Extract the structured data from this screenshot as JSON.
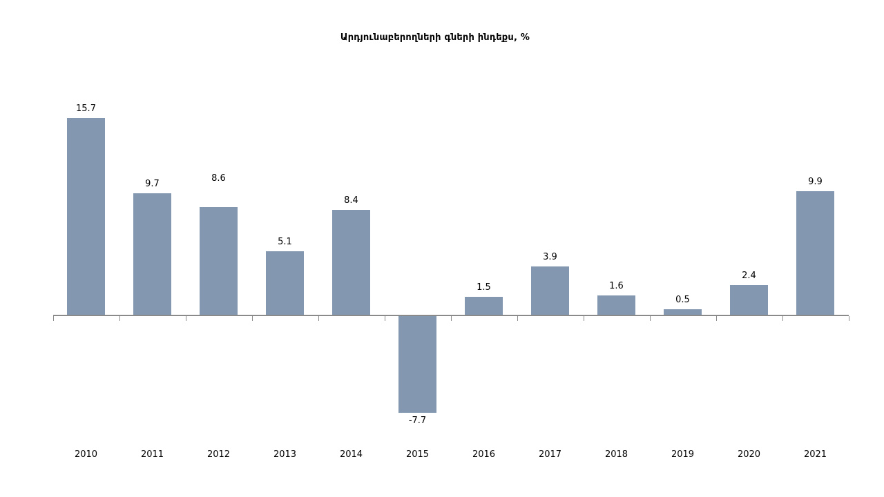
{
  "page": {
    "background": "#ffffff"
  },
  "chart_data": {
    "type": "bar",
    "title": "Արդյունաբերողների գների ինդեքս, %",
    "categories": [
      "2010",
      "2011",
      "2012",
      "2013",
      "2014",
      "2015",
      "2016",
      "2017",
      "2018",
      "2019",
      "2020",
      "2021"
    ],
    "values": [
      15.7,
      9.7,
      8.6,
      5.1,
      8.4,
      -7.7,
      1.5,
      3.9,
      1.6,
      0.5,
      2.4,
      9.9
    ],
    "data_labels": [
      "15.7",
      "9.7",
      "8.6",
      "5.1",
      "8.4",
      "-7.7",
      "1.5",
      "3.9",
      "1.6",
      "0.5",
      "2.4",
      "9.9"
    ],
    "label_extra_gap": [
      0,
      0,
      28,
      0,
      0,
      0,
      0,
      0,
      0,
      0,
      0,
      0
    ],
    "bar_color": "#8497B0",
    "axis_color": "#8A8A8A",
    "text_color": "#000000",
    "ylim": [
      -10,
      17
    ],
    "grid": "off",
    "legend": "none",
    "xlabel": "",
    "ylabel": ""
  }
}
